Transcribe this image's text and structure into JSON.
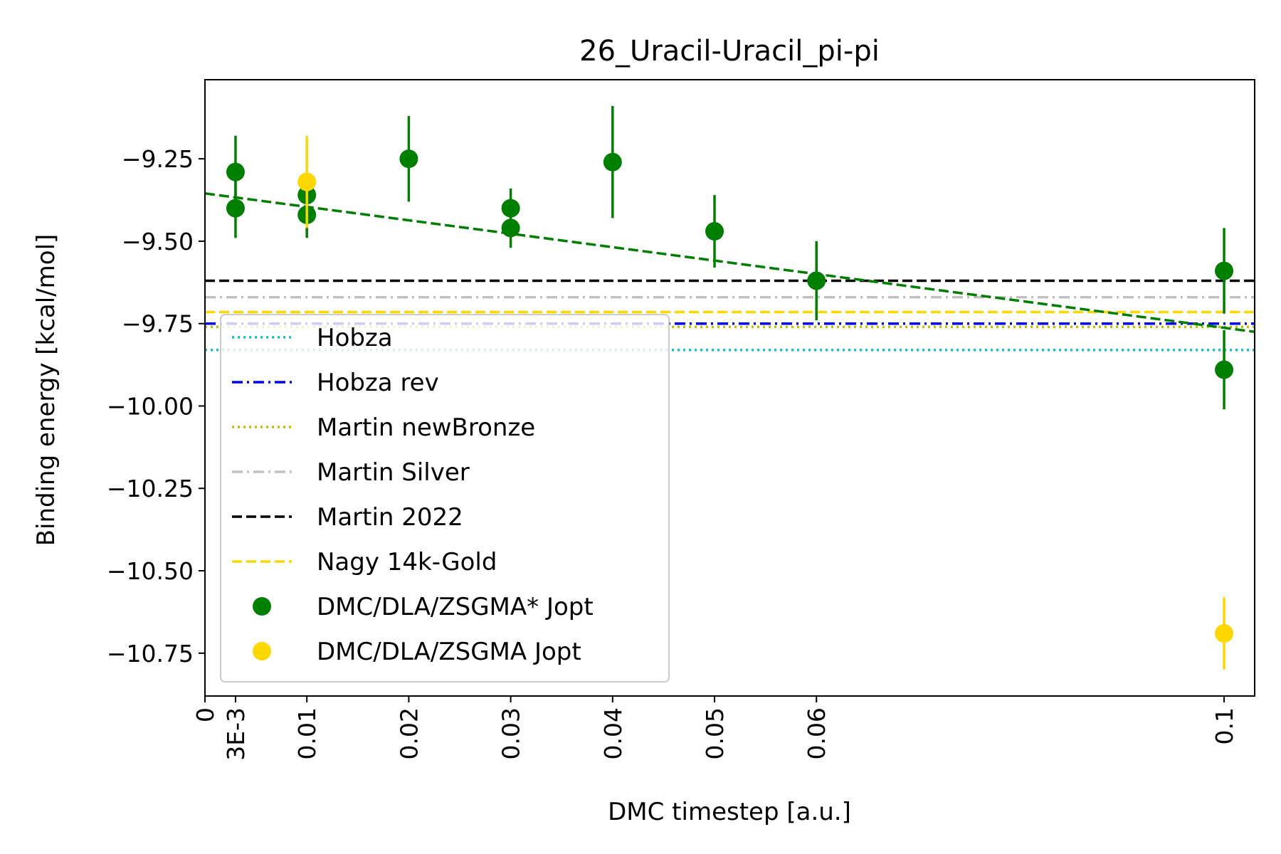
{
  "chart_data": {
    "type": "scatter",
    "title": "26_Uracil-Uracil_pi-pi",
    "xlabel": "DMC timestep [a.u.]",
    "ylabel": "Binding energy [kcal/mol]",
    "xlim": [
      0,
      0.103
    ],
    "ylim": [
      -10.88,
      -9.01
    ],
    "x_ticks": [
      {
        "value": 0,
        "label": "0"
      },
      {
        "value": 0.003,
        "label": "3E-3"
      },
      {
        "value": 0.01,
        "label": "0.01"
      },
      {
        "value": 0.02,
        "label": "0.02"
      },
      {
        "value": 0.03,
        "label": "0.03"
      },
      {
        "value": 0.04,
        "label": "0.04"
      },
      {
        "value": 0.05,
        "label": "0.05"
      },
      {
        "value": 0.06,
        "label": "0.06"
      },
      {
        "value": 0.1,
        "label": "0.1"
      }
    ],
    "y_ticks": [
      {
        "value": -9.25,
        "label": "−9.25"
      },
      {
        "value": -9.5,
        "label": "−9.50"
      },
      {
        "value": -9.75,
        "label": "−9.75"
      },
      {
        "value": -10.0,
        "label": "−10.00"
      },
      {
        "value": -10.25,
        "label": "−10.25"
      },
      {
        "value": -10.5,
        "label": "−10.50"
      },
      {
        "value": -10.75,
        "label": "−10.75"
      }
    ],
    "grid": false,
    "legend_position": "lower-left",
    "reference_lines": [
      {
        "name": "Hobza",
        "y": -9.83,
        "color": "#17becf",
        "style": "dotted"
      },
      {
        "name": "Hobza rev",
        "y": -9.75,
        "color": "#0000ff",
        "style": "dashdot"
      },
      {
        "name": "Martin newBronze",
        "y": -9.76,
        "color": "#bfbf00",
        "style": "dotted"
      },
      {
        "name": "Martin Silver",
        "y": -9.67,
        "color": "#c0c0c0",
        "style": "dashdot"
      },
      {
        "name": "Martin 2022",
        "y": -9.62,
        "color": "#000000",
        "style": "dashed"
      },
      {
        "name": "Nagy 14k-Gold",
        "y": -9.715,
        "color": "#ffd700",
        "style": "dashed"
      }
    ],
    "series": [
      {
        "name": "DMC/DLA/ZSGMA* Jopt",
        "color": "#008000",
        "points": [
          {
            "x": 0.003,
            "y": -9.29,
            "err": 0.11
          },
          {
            "x": 0.003,
            "y": -9.4,
            "err": 0.09
          },
          {
            "x": 0.01,
            "y": -9.36,
            "err": 0.05
          },
          {
            "x": 0.01,
            "y": -9.42,
            "err": 0.07
          },
          {
            "x": 0.02,
            "y": -9.25,
            "err": 0.13
          },
          {
            "x": 0.03,
            "y": -9.4,
            "err": 0.06
          },
          {
            "x": 0.03,
            "y": -9.46,
            "err": 0.06
          },
          {
            "x": 0.04,
            "y": -9.26,
            "err": 0.17
          },
          {
            "x": 0.05,
            "y": -9.47,
            "err": 0.11
          },
          {
            "x": 0.06,
            "y": -9.62,
            "err": 0.12
          },
          {
            "x": 0.1,
            "y": -9.59,
            "err": 0.13
          },
          {
            "x": 0.1,
            "y": -9.89,
            "err": 0.12
          }
        ]
      },
      {
        "name": "DMC/DLA/ZSGMA Jopt",
        "color": "#ffd700",
        "points": [
          {
            "x": 0.01,
            "y": -9.32,
            "err": 0.14
          },
          {
            "x": 0.1,
            "y": -10.69,
            "err": 0.11
          }
        ]
      }
    ],
    "fit_line": {
      "color": "#008000",
      "style": "dashed",
      "points": [
        {
          "x": 0,
          "y": -9.355
        },
        {
          "x": 0.103,
          "y": -9.775
        }
      ]
    }
  }
}
